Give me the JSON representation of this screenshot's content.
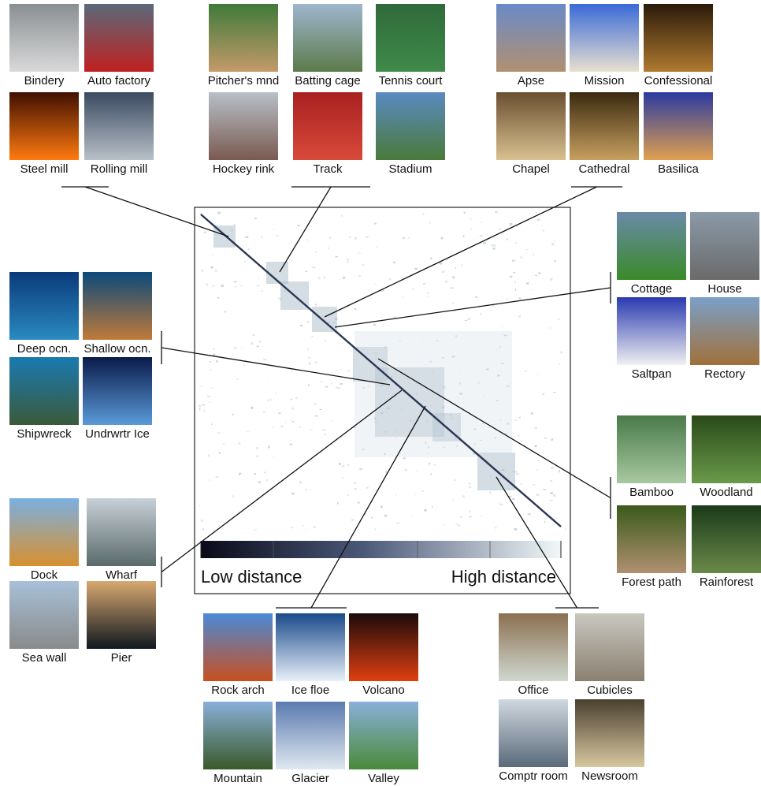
{
  "clusters": [
    {
      "labels": [
        "Bindery",
        "Auto factory",
        "Steel mill",
        "Rolling mill"
      ]
    },
    {
      "labels": [
        "Pitcher's mnd",
        "Batting cage",
        "Tennis court",
        "Hockey rink",
        "Track",
        "Stadium"
      ]
    },
    {
      "labels": [
        "Apse",
        "Mission",
        "Confessional",
        "Chapel",
        "Cathedral",
        "Basilica"
      ]
    },
    {
      "labels": [
        "Cottage",
        "House",
        "Saltpan",
        "Rectory"
      ]
    },
    {
      "labels": [
        "Deep ocn.",
        "Shallow ocn.",
        "Shipwreck",
        "Undrwrtr Ice"
      ]
    },
    {
      "labels": [
        "Bamboo",
        "Woodland",
        "Forest path",
        "Rainforest"
      ]
    },
    {
      "labels": [
        "Dock",
        "Wharf",
        "Sea wall",
        "Pier"
      ]
    },
    {
      "labels": [
        "Rock arch",
        "Ice floe",
        "Volcano",
        "Mountain",
        "Glacier",
        "Valley"
      ]
    },
    {
      "labels": [
        "Office",
        "Cubicles",
        "Comptr room",
        "Newsroom"
      ]
    }
  ],
  "colorbar": {
    "low_label": "Low distance",
    "high_label": "High distance"
  }
}
